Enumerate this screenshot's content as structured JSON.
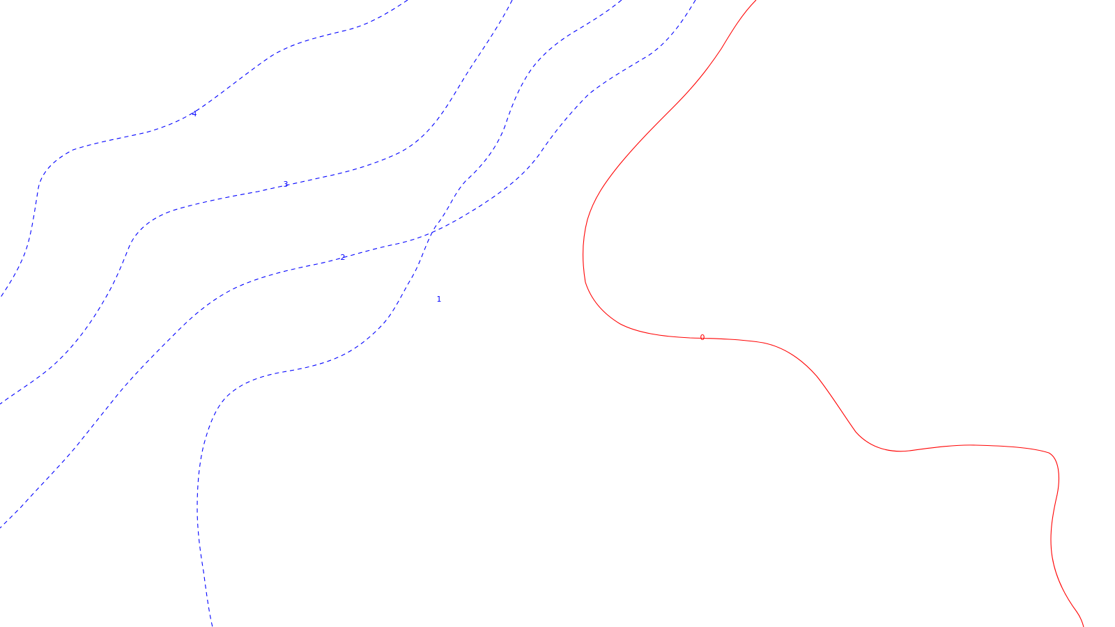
{
  "map": {
    "background": "#ffffff",
    "colors": {
      "zero": "#ff0000",
      "negative": "#0000ff"
    },
    "contours": [
      {
        "label": "0",
        "style": "solid",
        "color": "#ff0000"
      },
      {
        "label": "1",
        "style": "dashed",
        "color": "#0000ff"
      },
      {
        "label": "2",
        "style": "dashed",
        "color": "#0000ff"
      },
      {
        "label": "3",
        "style": "dashed",
        "color": "#0000ff"
      },
      {
        "label": "4",
        "style": "dashed",
        "color": "#0000ff"
      }
    ]
  }
}
